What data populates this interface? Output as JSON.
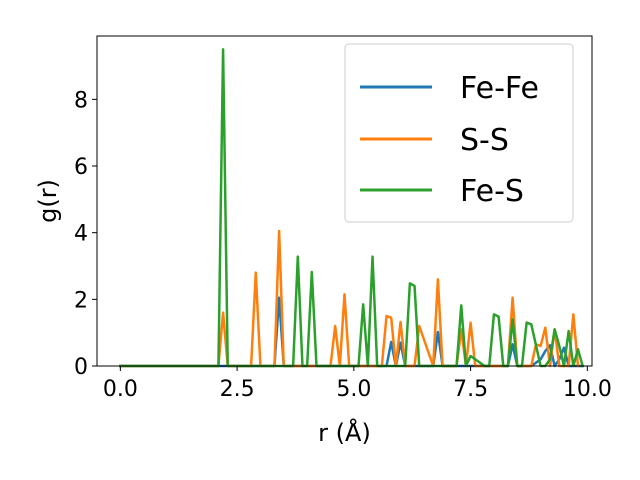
{
  "chart_data": {
    "type": "line",
    "xlabel": "r (Å)",
    "ylabel": "g(r)",
    "xlim": [
      -0.5,
      10.1
    ],
    "ylim": [
      0,
      9.9
    ],
    "xticks": [
      0.0,
      2.5,
      5.0,
      7.5,
      10.0
    ],
    "xtick_labels": [
      "0.0",
      "2.5",
      "5.0",
      "7.5",
      "10.0"
    ],
    "yticks": [
      0,
      2,
      4,
      6,
      8
    ],
    "ytick_labels": [
      "0",
      "2",
      "4",
      "6",
      "8"
    ],
    "grid": false,
    "legend_position": "top-right",
    "series": [
      {
        "name": "Fe-Fe",
        "color": "#1f77b4",
        "x": [
          0.0,
          3.3,
          3.4,
          3.5,
          5.7,
          5.8,
          5.9,
          6.0,
          6.1,
          6.2,
          6.7,
          6.8,
          6.9,
          8.3,
          8.4,
          8.5,
          8.8,
          9.0,
          9.1,
          9.2,
          9.3,
          9.4,
          9.5,
          9.6,
          9.7,
          9.8,
          9.9
        ],
        "y": [
          0.0,
          0.0,
          2.05,
          0.0,
          0.0,
          0.72,
          0.0,
          0.7,
          0.0,
          0.0,
          0.0,
          1.02,
          0.0,
          0.0,
          0.65,
          0.0,
          0.0,
          0.2,
          0.45,
          0.62,
          0.0,
          0.2,
          0.55,
          0.0,
          0.0,
          0.0,
          0.0
        ]
      },
      {
        "name": "S-S",
        "color": "#ff7f0e",
        "x": [
          0.0,
          2.1,
          2.2,
          2.3,
          2.8,
          2.9,
          3.0,
          3.3,
          3.4,
          3.5,
          4.5,
          4.6,
          4.7,
          4.8,
          4.9,
          5.6,
          5.7,
          5.8,
          5.9,
          6.0,
          6.1,
          6.3,
          6.4,
          6.7,
          6.8,
          6.9,
          7.2,
          7.3,
          7.4,
          7.5,
          7.6,
          8.3,
          8.4,
          8.5,
          8.8,
          8.9,
          9.0,
          9.1,
          9.2,
          9.3,
          9.4,
          9.5,
          9.6,
          9.7,
          9.8
        ],
        "y": [
          0.0,
          0.0,
          1.6,
          0.0,
          0.0,
          2.8,
          0.0,
          0.0,
          4.05,
          0.0,
          0.0,
          1.2,
          0.0,
          2.15,
          0.0,
          0.0,
          1.5,
          1.45,
          0.0,
          1.32,
          0.0,
          0.0,
          1.2,
          0.0,
          2.6,
          0.0,
          0.0,
          1.1,
          0.0,
          1.3,
          0.0,
          0.0,
          2.05,
          0.0,
          0.0,
          0.65,
          0.6,
          1.15,
          0.0,
          1.1,
          0.0,
          0.0,
          0.0,
          1.55,
          0.0
        ]
      },
      {
        "name": "Fe-S",
        "color": "#2ca02c",
        "x": [
          0.0,
          2.1,
          2.2,
          2.3,
          3.7,
          3.8,
          3.9,
          4.0,
          4.1,
          4.2,
          5.0,
          5.1,
          5.2,
          5.3,
          5.4,
          5.5,
          6.1,
          6.2,
          6.3,
          6.4,
          7.2,
          7.3,
          7.4,
          7.5,
          7.8,
          7.9,
          8.0,
          8.1,
          8.2,
          8.3,
          8.4,
          8.5,
          8.6,
          8.7,
          8.8,
          9.0,
          9.1,
          9.2,
          9.3,
          9.4,
          9.5,
          9.6,
          9.7,
          9.8,
          9.9
        ],
        "y": [
          0.0,
          0.0,
          9.5,
          0.0,
          0.0,
          3.28,
          0.0,
          0.0,
          2.82,
          0.0,
          0.0,
          0.0,
          1.85,
          0.0,
          3.28,
          0.0,
          0.0,
          2.48,
          2.4,
          0.0,
          0.0,
          1.82,
          0.0,
          0.3,
          0.0,
          0.0,
          1.55,
          1.48,
          0.0,
          0.0,
          1.4,
          0.0,
          0.0,
          1.3,
          1.25,
          0.0,
          0.0,
          0.2,
          1.1,
          0.6,
          0.0,
          1.05,
          0.0,
          0.5,
          0.0
        ]
      }
    ]
  }
}
